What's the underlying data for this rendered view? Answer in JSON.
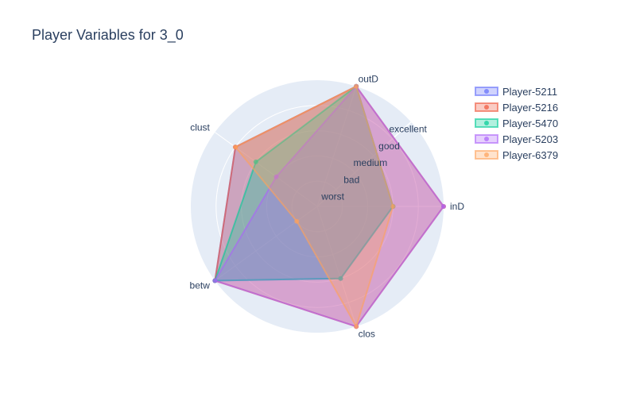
{
  "chart_data": {
    "type": "radar",
    "title": "Player Variables for 3_0",
    "axes": [
      "inD",
      "outD",
      "clust",
      "betw",
      "clos"
    ],
    "radial_tick_labels": [
      "worst",
      "bad",
      "medium",
      "good",
      "excellent"
    ],
    "radial_range": [
      0,
      5
    ],
    "grid": true,
    "legend_position": "top-right",
    "series": [
      {
        "name": "Player-5211",
        "color": "#636efa",
        "values": [
          3,
          5,
          4,
          5,
          3
        ]
      },
      {
        "name": "Player-5216",
        "color": "#ef553b",
        "values": [
          5,
          5,
          4,
          5,
          5
        ]
      },
      {
        "name": "Player-5470",
        "color": "#00cc96",
        "values": [
          3,
          5,
          3,
          5,
          3
        ]
      },
      {
        "name": "Player-5203",
        "color": "#ab63fa",
        "values": [
          5,
          5,
          2,
          5,
          5
        ]
      },
      {
        "name": "Player-6379",
        "color": "#ffa15a",
        "values": [
          3,
          5,
          4,
          1,
          5
        ]
      }
    ]
  }
}
